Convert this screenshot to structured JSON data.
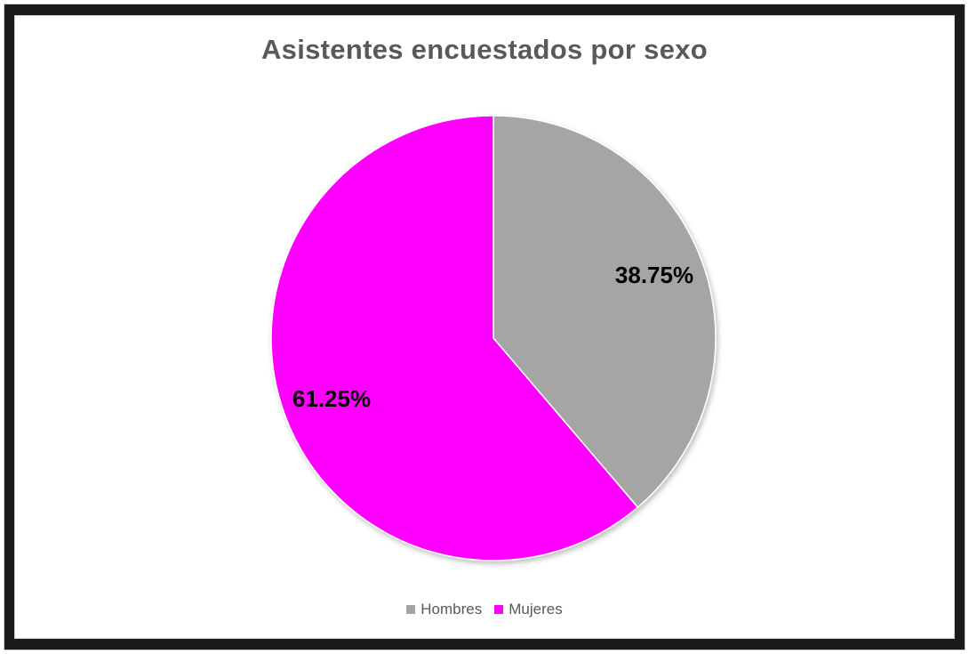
{
  "chart_data": {
    "type": "pie",
    "title": "Asistentes encuestados por sexo",
    "categories": [
      "Hombres",
      "Mujeres"
    ],
    "values": [
      38.75,
      61.25
    ],
    "data_labels": [
      "38.75%",
      "61.25%"
    ],
    "colors": [
      "#a5a5a5",
      "#ff00ff"
    ],
    "start_angle_deg": 0,
    "direction": "clockwise",
    "legend_position": "bottom"
  }
}
